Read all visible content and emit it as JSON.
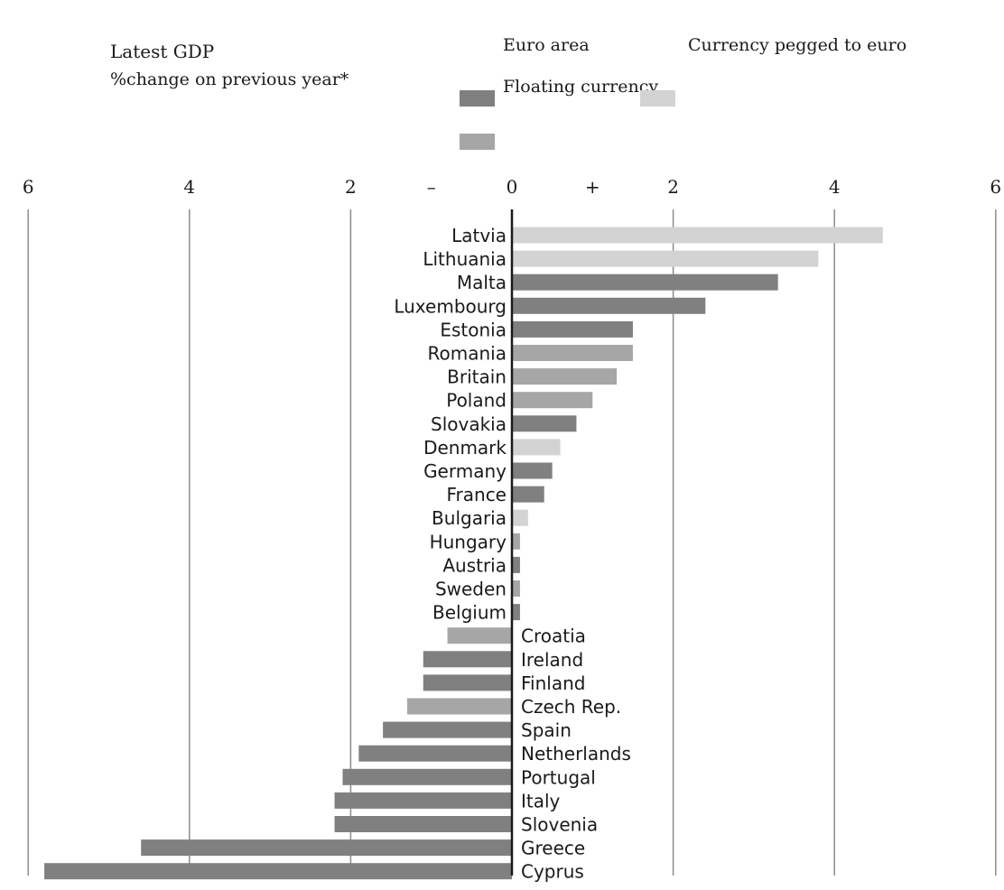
{
  "title_line1": "Latest GDP",
  "title_line2": "%change on previous year*",
  "legend": [
    {
      "label": "Euro area",
      "color": "#808080"
    },
    {
      "label": "Floating currency",
      "color": "#a6a6a6"
    },
    {
      "label": "Currency pegged to euro",
      "color": "#d3d3d3"
    }
  ],
  "colors": {
    "euro": "#808080",
    "floating": "#a6a6a6",
    "pegged": "#d3d3d3",
    "axis": "#1a1a1a",
    "grid": "#8c8c8c"
  },
  "chart_data": {
    "type": "bar",
    "orientation": "horizontal",
    "title": "Latest GDP",
    "subtitle": "%change on previous year*",
    "xlim": [
      -6,
      6
    ],
    "x_ticks": [
      -6,
      -4,
      -2,
      0,
      2,
      4,
      6
    ],
    "x_tick_labels": [
      "6",
      "4",
      "2",
      "0",
      "2",
      "4",
      "6"
    ],
    "sign_labels": {
      "negative": "–",
      "positive": "+"
    },
    "grid": true,
    "legend_position": "top",
    "categories": [
      "Latvia",
      "Lithuania",
      "Malta",
      "Luxembourg",
      "Estonia",
      "Romania",
      "Britain",
      "Poland",
      "Slovakia",
      "Denmark",
      "Germany",
      "France",
      "Bulgaria",
      "Hungary",
      "Austria",
      "Sweden",
      "Belgium",
      "Croatia",
      "Ireland",
      "Finland",
      "Czech Rep.",
      "Spain",
      "Netherlands",
      "Portugal",
      "Italy",
      "Slovenia",
      "Greece",
      "Cyprus"
    ],
    "values": [
      4.6,
      3.8,
      3.3,
      2.4,
      1.5,
      1.5,
      1.3,
      1.0,
      0.8,
      0.6,
      0.5,
      0.4,
      0.2,
      0.1,
      0.1,
      0.1,
      0.1,
      -0.8,
      -1.1,
      -1.1,
      -1.3,
      -1.6,
      -1.9,
      -2.1,
      -2.2,
      -2.2,
      -4.6,
      -5.8
    ],
    "groups": [
      "pegged",
      "pegged",
      "euro",
      "euro",
      "euro",
      "floating",
      "floating",
      "floating",
      "euro",
      "pegged",
      "euro",
      "euro",
      "pegged",
      "floating",
      "euro",
      "floating",
      "euro",
      "floating",
      "euro",
      "euro",
      "floating",
      "euro",
      "euro",
      "euro",
      "euro",
      "euro",
      "euro",
      "euro"
    ]
  }
}
